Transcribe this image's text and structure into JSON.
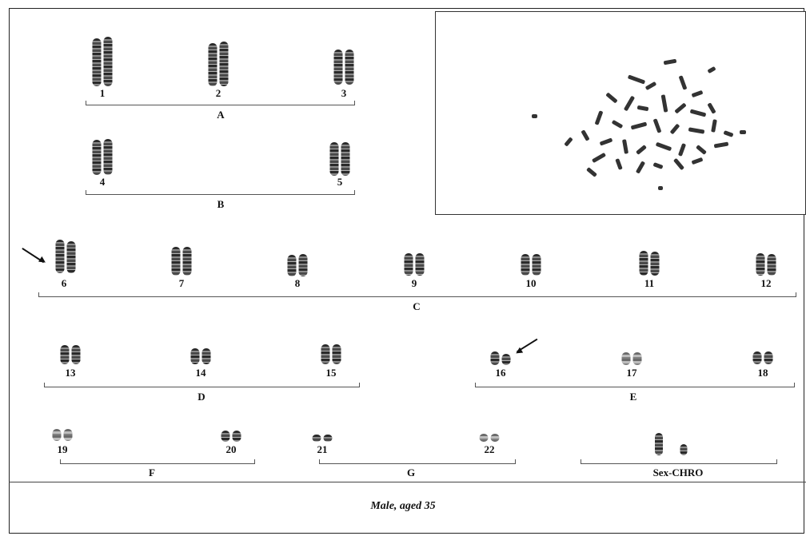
{
  "karyotype": {
    "groups": [
      {
        "label": "A",
        "chromosomes": [
          "1",
          "2",
          "3"
        ]
      },
      {
        "label": "B",
        "chromosomes": [
          "4",
          "5"
        ]
      },
      {
        "label": "C",
        "chromosomes": [
          "6",
          "7",
          "8",
          "9",
          "10",
          "11",
          "12"
        ]
      },
      {
        "label": "D",
        "chromosomes": [
          "13",
          "14",
          "15"
        ]
      },
      {
        "label": "E",
        "chromosomes": [
          "16",
          "17",
          "18"
        ]
      },
      {
        "label": "F",
        "chromosomes": [
          "19",
          "20"
        ]
      },
      {
        "label": "G",
        "chromosomes": [
          "21",
          "22"
        ]
      },
      {
        "label": "Sex-CHRO",
        "chromosomes": []
      }
    ],
    "arrows_on": [
      "6",
      "16"
    ]
  },
  "caption": "Male, aged 35",
  "colors": {
    "border": "#222222",
    "chromosome": "#3d3d3d",
    "background": "#ffffff"
  }
}
